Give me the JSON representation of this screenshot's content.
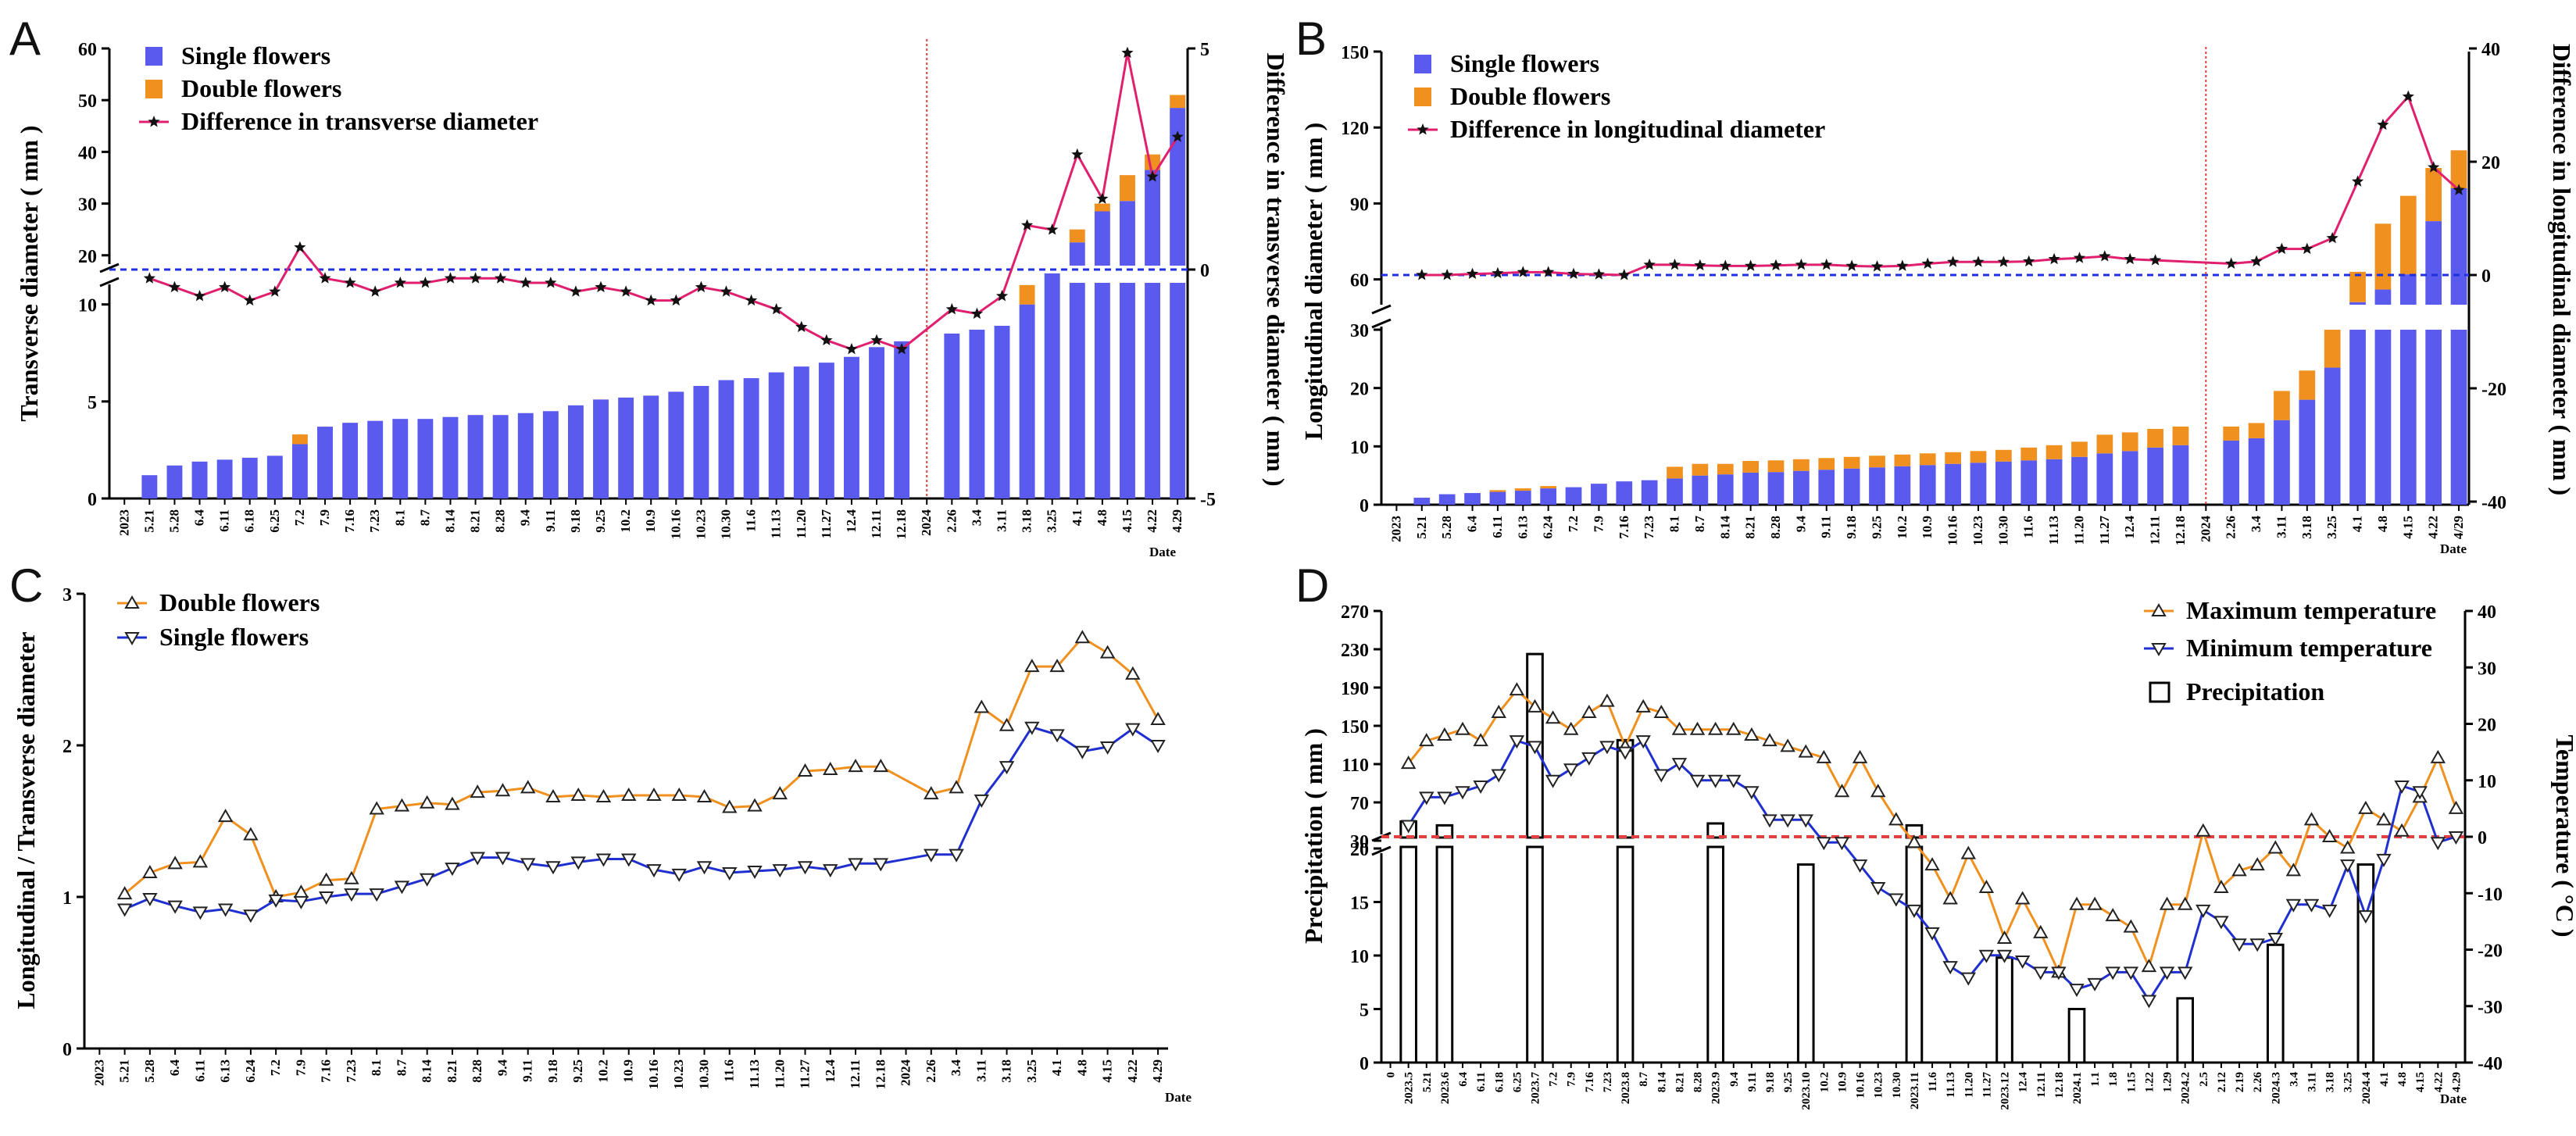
{
  "panels": {
    "A": {
      "label": "A"
    },
    "B": {
      "label": "B"
    },
    "C": {
      "label": "C"
    },
    "D": {
      "label": "D"
    }
  },
  "colors": {
    "single": "#5a5aee",
    "double": "#f0901e",
    "diff": "#e0206e",
    "zero": "#2030e0",
    "tmax": "#f0901e",
    "tmin": "#2030d0",
    "divider": "#e04040",
    "red_text": "#e02020"
  },
  "chart_data": [
    {
      "id": "A",
      "type": "bar",
      "title": "",
      "legend": [
        "Single flowers",
        "Double flowers",
        "Difference in transverse diameter"
      ],
      "ylabel": "Transverse diameter ( mm )",
      "y2label": "Difference in transverse diameter ( mm )",
      "xlabel": "Date",
      "yticks_lower": [
        0,
        5,
        10
      ],
      "yticks_upper": [
        20,
        30,
        40,
        50,
        60
      ],
      "y2ticks": [
        -5,
        0,
        5
      ],
      "ylim_lower": [
        0,
        12
      ],
      "ylim_upper": [
        18,
        60
      ],
      "y2lim": [
        -5,
        5
      ],
      "categories": [
        "2023",
        "5.21",
        "5.28",
        "6.4",
        "6.11",
        "6.18",
        "6.25",
        "7.2",
        "7.9",
        "7.16",
        "7.23",
        "8.1",
        "8.7",
        "8.14",
        "8.21",
        "8.28",
        "9.4",
        "9.11",
        "9.18",
        "9.25",
        "10.2",
        "10.9",
        "10.16",
        "10.23",
        "10.30",
        "11.6",
        "11.13",
        "11.20",
        "11.27",
        "12.4",
        "12.11",
        "12.18",
        "2024",
        "2.26",
        "3.4",
        "3.11",
        "3.18",
        "3.25",
        "4.1",
        "4.8",
        "4.15",
        "4.22",
        "4.29"
      ],
      "red_categories": [
        "2023",
        "2024"
      ],
      "single": [
        null,
        1.2,
        1.7,
        1.9,
        2.0,
        2.1,
        2.2,
        2.8,
        3.7,
        3.9,
        4.0,
        4.1,
        4.1,
        4.2,
        4.3,
        4.3,
        4.4,
        4.5,
        4.8,
        5.1,
        5.2,
        5.3,
        5.5,
        5.8,
        6.1,
        6.2,
        6.5,
        6.8,
        7.0,
        7.3,
        7.8,
        8.1,
        null,
        8.5,
        8.7,
        8.9,
        10.0,
        11.6,
        22.5,
        28.5,
        30.5,
        36.5,
        48.5
      ],
      "double": [
        null,
        0,
        0,
        0,
        0,
        0,
        0,
        0.5,
        0,
        0,
        0,
        0,
        0,
        0,
        0,
        0,
        0,
        0,
        0,
        0,
        0,
        0,
        0,
        0,
        0,
        0,
        0,
        0,
        0,
        0,
        0,
        0,
        null,
        0,
        0,
        0,
        1.0,
        1.3,
        2.5,
        1.5,
        5.0,
        3.0,
        2.5
      ],
      "diff": [
        null,
        -0.2,
        -0.4,
        -0.6,
        -0.4,
        -0.7,
        -0.5,
        0.5,
        -0.2,
        -0.3,
        -0.5,
        -0.3,
        -0.3,
        -0.2,
        -0.2,
        -0.2,
        -0.3,
        -0.3,
        -0.5,
        -0.4,
        -0.5,
        -0.7,
        -0.7,
        -0.4,
        -0.5,
        -0.7,
        -0.9,
        -1.3,
        -1.6,
        -1.8,
        null,
        null,
        null,
        -0.9,
        -1.0,
        -0.6,
        1.0,
        0.9,
        2.6,
        1.6,
        4.9,
        2.1,
        3.0
      ],
      "diff_extra": {
        "12.11": -1.6,
        "12.18": -1.8,
        "2.26_prev": -1.2
      }
    },
    {
      "id": "B",
      "type": "bar",
      "legend": [
        "Single flowers",
        "Double flowers",
        "Difference in longitudinal diameter"
      ],
      "ylabel": "Longitudinal diameter ( mm )",
      "y2label": "Difference in longitudinal diameter ( mm )",
      "xlabel": "Date",
      "yticks_lower": [
        0,
        10,
        20,
        30
      ],
      "yticks_upper": [
        60,
        90,
        120,
        150
      ],
      "y2ticks": [
        -40,
        -20,
        0,
        20,
        40
      ],
      "categories": [
        "2023",
        "5.21",
        "5.28",
        "6.4",
        "6.11",
        "6.13",
        "6.24",
        "7.2",
        "7.9",
        "7.16",
        "7.23",
        "8.1",
        "8.7",
        "8.14",
        "8.21",
        "8.28",
        "9.4",
        "9.11",
        "9.18",
        "9.25",
        "10.2",
        "10.9",
        "10.16",
        "10.23",
        "10.30",
        "11.6",
        "11.13",
        "11.20",
        "11.27",
        "12.4",
        "12.11",
        "12.18",
        "2024",
        "2.26",
        "3.4",
        "3.11",
        "3.18",
        "3.25",
        "4.1",
        "4.8",
        "4.15",
        "4.22",
        "4/29"
      ],
      "red_categories": [],
      "single": [
        null,
        1.2,
        1.8,
        2.0,
        2.2,
        2.4,
        2.8,
        3.0,
        3.6,
        4.0,
        4.2,
        4.5,
        5.0,
        5.2,
        5.5,
        5.6,
        5.8,
        6.0,
        6.2,
        6.4,
        6.6,
        6.8,
        7.0,
        7.2,
        7.4,
        7.6,
        7.8,
        8.2,
        8.8,
        9.2,
        9.8,
        10.2,
        null,
        11.0,
        11.4,
        14.5,
        18.0,
        23.5,
        51,
        56,
        62,
        83,
        96
      ],
      "double": [
        null,
        0,
        0,
        0,
        0.3,
        0.4,
        0.4,
        0,
        0,
        0,
        0,
        2.0,
        2.0,
        1.8,
        2.0,
        2.0,
        2.0,
        2.0,
        2.0,
        2.0,
        2.0,
        2.0,
        2.0,
        2.0,
        2.0,
        2.2,
        2.4,
        2.6,
        3.2,
        3.2,
        3.2,
        3.2,
        null,
        2.4,
        2.6,
        5.0,
        5.0,
        6.5,
        12,
        26,
        31,
        21,
        15
      ],
      "diff": [
        null,
        0,
        0,
        0.2,
        0.3,
        0.5,
        0.5,
        0.2,
        0.1,
        0,
        1.8,
        1.8,
        1.7,
        1.6,
        1.6,
        1.7,
        1.8,
        1.8,
        1.6,
        1.5,
        1.6,
        2.0,
        2.3,
        2.3,
        2.3,
        2.4,
        2.8,
        3.0,
        3.3,
        2.8,
        2.6,
        null,
        null,
        2.0,
        2.4,
        4.6,
        4.6,
        6.5,
        16.5,
        26.5,
        31.5,
        19.0,
        15.0
      ]
    },
    {
      "id": "C",
      "type": "line",
      "legend": [
        "Double flowers",
        "Single flowers"
      ],
      "ylabel": "Longitudinal / Transverse diameter",
      "xlabel": "Date",
      "yticks": [
        0,
        1,
        2,
        3
      ],
      "ylim": [
        0,
        3
      ],
      "categories": [
        "2023",
        "5.21",
        "5.28",
        "6.4",
        "6.11",
        "6.13",
        "6.24",
        "7.2",
        "7.9",
        "7.16",
        "7.23",
        "8.1",
        "8.7",
        "8.14",
        "8.21",
        "8.28",
        "9.4",
        "9.11",
        "9.18",
        "9.25",
        "10.2",
        "10.9",
        "10.16",
        "10.23",
        "10.30",
        "11.6",
        "11.13",
        "11.20",
        "11.27",
        "12.4",
        "12.11",
        "12.18",
        "2024",
        "2.26",
        "3.4",
        "3.11",
        "3.18",
        "3.25",
        "4.1",
        "4.8",
        "4.15",
        "4.22",
        "4.29"
      ],
      "red_categories": [
        "2023",
        "2024"
      ],
      "series": [
        {
          "name": "Double flowers",
          "values": [
            null,
            1.02,
            1.16,
            1.22,
            1.23,
            1.53,
            1.41,
            1.0,
            1.03,
            1.11,
            1.12,
            1.58,
            1.6,
            1.62,
            1.61,
            1.69,
            1.7,
            1.72,
            1.66,
            1.67,
            1.66,
            1.67,
            1.67,
            1.67,
            1.66,
            1.59,
            1.6,
            1.68,
            1.83,
            1.84,
            1.86,
            1.86,
            null,
            1.68,
            1.72,
            2.25,
            2.13,
            2.52,
            2.52,
            2.71,
            2.61,
            2.47,
            2.17
          ]
        },
        {
          "name": "Single flowers",
          "values": [
            null,
            0.92,
            0.99,
            0.94,
            0.9,
            0.92,
            0.88,
            0.98,
            0.97,
            1.0,
            1.02,
            1.02,
            1.07,
            1.12,
            1.19,
            1.26,
            1.26,
            1.22,
            1.2,
            1.23,
            1.25,
            1.25,
            1.18,
            1.15,
            1.2,
            1.16,
            1.17,
            1.18,
            1.2,
            1.18,
            1.22,
            1.22,
            null,
            1.28,
            1.28,
            1.64,
            1.86,
            2.12,
            2.07,
            1.96,
            1.99,
            2.11,
            2.0
          ]
        }
      ]
    },
    {
      "id": "D",
      "type": "line",
      "legend": [
        "Maximum temperature",
        "Minimum  temperature",
        "Precipitation"
      ],
      "ylabel": "Precipitation ( mm )",
      "y2label": "Temperature ( °C )",
      "xlabel": "Date",
      "yticks_lower": [
        0,
        5,
        10,
        15,
        20
      ],
      "yticks_upper": [
        30,
        70,
        110,
        150,
        190,
        230,
        270
      ],
      "y2ticks": [
        -40,
        -30,
        -20,
        -10,
        0,
        10,
        20,
        30,
        40
      ],
      "categories": [
        "0",
        "2023.5",
        "5.21",
        "2023.6",
        "6.4",
        "6.11",
        "6.18",
        "6.25",
        "2023.7",
        "7.2",
        "7.9",
        "7.16",
        "7.23",
        "2023.8",
        "8.7",
        "8.14",
        "8.21",
        "8.28",
        "2023.9",
        "9.4",
        "9.11",
        "9.18",
        "9.25",
        "2023.10",
        "10.2",
        "10.9",
        "10.16",
        "10.23",
        "10.30",
        "2023.11",
        "11.6",
        "11.13",
        "11.20",
        "11.27",
        "2023.12",
        "12.4",
        "12.11",
        "12.18",
        "2024.1",
        "1.1",
        "1.8",
        "1.15",
        "1.22",
        "1.29",
        "2024.2",
        "2.5",
        "2.12",
        "2.19",
        "2.26",
        "2024.3",
        "3.4",
        "3.11",
        "3.18",
        "3.25",
        "2024.4",
        "4.1",
        "4.8",
        "4.15",
        "4.22",
        "4.29"
      ],
      "red_categories": [
        "2023.5",
        "2023.6",
        "2023.7",
        "2023.10",
        "2023.11",
        "2023.12"
      ],
      "tmax": [
        null,
        13,
        17,
        18,
        19,
        17,
        22,
        26,
        23,
        21,
        19,
        22,
        24,
        16,
        23,
        22,
        19,
        19,
        19,
        19,
        18,
        17,
        16,
        15,
        14,
        8,
        14,
        8,
        3,
        -1,
        -5,
        -11,
        -3,
        -9,
        -18,
        -11,
        -17,
        -24,
        -12,
        -12,
        -14,
        -16,
        -23,
        -12,
        -12,
        1,
        -9,
        -6,
        -5,
        -2,
        -6,
        3,
        0,
        -2,
        5,
        3,
        1,
        7,
        14,
        5
      ],
      "tmin": [
        null,
        2,
        7,
        7,
        8,
        9,
        11,
        17,
        16,
        10,
        12,
        14,
        16,
        15,
        17,
        11,
        13,
        10,
        10,
        10,
        8,
        3,
        3,
        3,
        -1,
        -1,
        -5,
        -9,
        -11,
        -13,
        -17,
        -23,
        -25,
        -21,
        -21,
        -22,
        -24,
        -24,
        -27,
        -26,
        -24,
        -24,
        -29,
        -24,
        -24,
        -13,
        -15,
        -19,
        -19,
        -18,
        -12,
        -12,
        -13,
        -5,
        -14,
        -4,
        9,
        8,
        -1,
        0
      ],
      "precipitation": [
        {
          "category": "2023.5",
          "value": 50
        },
        {
          "category": "2023.6",
          "value": 46
        },
        {
          "category": "2023.7",
          "value": 225
        },
        {
          "category": "2023.8",
          "value": 135
        },
        {
          "category": "2023.9",
          "value": 48
        },
        {
          "category": "2023.10",
          "value": 18.5
        },
        {
          "category": "2023.11",
          "value": 46
        },
        {
          "category": "2023.12",
          "value": 9.8
        },
        {
          "category": "2024.1",
          "value": 5
        },
        {
          "category": "2024.2",
          "value": 6
        },
        {
          "category": "2024.3",
          "value": 11
        },
        {
          "category": "2024.4",
          "value": 18.5
        }
      ]
    }
  ]
}
